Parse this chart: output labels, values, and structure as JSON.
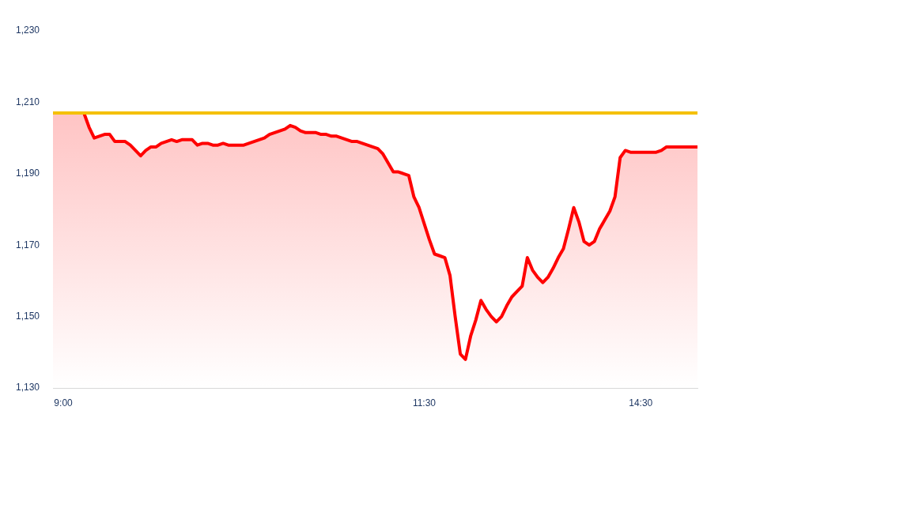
{
  "chart_data": {
    "type": "area",
    "categories": [
      null,
      null,
      "9:00",
      null,
      null,
      null,
      null,
      null,
      null,
      null,
      null,
      null,
      null,
      null,
      null,
      null,
      null,
      null,
      null,
      null,
      null,
      null,
      null,
      null,
      null,
      null,
      null,
      null,
      null,
      null,
      null,
      null,
      null,
      null,
      null,
      null,
      null,
      null,
      null,
      null,
      null,
      null,
      null,
      null,
      null,
      null,
      null,
      null,
      null,
      null,
      null,
      null,
      null,
      null,
      null,
      null,
      null,
      null,
      null,
      null,
      null,
      null,
      null,
      null,
      null,
      null,
      null,
      null,
      null,
      null,
      null,
      null,
      "11:30",
      null,
      null,
      null,
      null,
      null,
      null,
      null,
      null,
      null,
      null,
      null,
      null,
      null,
      null,
      null,
      null,
      null,
      null,
      null,
      null,
      null,
      null,
      null,
      null,
      null,
      null,
      null,
      null,
      null,
      null,
      null,
      null,
      null,
      null,
      null,
      null,
      null,
      null,
      null,
      null,
      null,
      "14:30",
      null,
      null,
      null,
      null,
      null,
      null,
      null,
      null,
      null,
      null,
      null
    ],
    "series": [
      {
        "color": "#ff0000",
        "values": [
          1207,
          1207,
          1207,
          1207,
          1207,
          1207,
          1207,
          1203,
          1200,
          1200.5,
          1201,
          1201,
          1199,
          1199,
          1199,
          1198,
          1196.5,
          1195,
          1196.5,
          1197.5,
          1197.5,
          1198.5,
          1199,
          1199.5,
          1199,
          1199.5,
          1199.5,
          1199.5,
          1198,
          1198.5,
          1198.5,
          1198,
          1198,
          1198.5,
          1198,
          1198,
          1198,
          1198,
          1198.5,
          1199,
          1199.5,
          1200,
          1201,
          1201.5,
          1202,
          1202.5,
          1203.5,
          1203,
          1202,
          1201.5,
          1201.5,
          1201.5,
          1201,
          1201,
          1200.5,
          1200.5,
          1200,
          1199.5,
          1199,
          1199,
          1198.5,
          1198,
          1197.5,
          1197,
          1195.5,
          1193,
          1190.5,
          1190.5,
          1190,
          1189.5,
          1183.5,
          1180.5,
          1176,
          1171.5,
          1167.5,
          1167,
          1166.5,
          1161.5,
          1150,
          1139.5,
          1138,
          1144.5,
          1149,
          1154.5,
          1152,
          1150,
          1148.5,
          1150,
          1153,
          1155.5,
          1157,
          1158.5,
          1166.5,
          1163,
          1161,
          1159.5,
          1161,
          1163.5,
          1166.5,
          1169,
          1174.5,
          1180.5,
          1176.5,
          1171,
          1170,
          1171,
          1174.5,
          1177,
          1179.5,
          1183.5,
          1194.5,
          1196.5,
          1196,
          1196,
          1196,
          1196,
          1196,
          1196,
          1196.5,
          1197.5,
          1197.5,
          1197.5,
          1197.5,
          1197.5,
          1197.5,
          1197.5
        ]
      }
    ],
    "ylim": [
      1130,
      1230
    ],
    "yticks": [
      {
        "value": 1130,
        "label": "1,130"
      },
      {
        "value": 1150,
        "label": "1,150"
      },
      {
        "value": 1170,
        "label": "1,170"
      },
      {
        "value": 1190,
        "label": "1,190"
      },
      {
        "value": 1210,
        "label": "1,210"
      },
      {
        "value": 1230,
        "label": "1,230"
      }
    ],
    "ref_lines": [
      {
        "axis": "y",
        "value": 1207,
        "color": "#f5c000"
      }
    ],
    "grid": false,
    "legend": false,
    "marker": "none",
    "line_style": "solid"
  }
}
